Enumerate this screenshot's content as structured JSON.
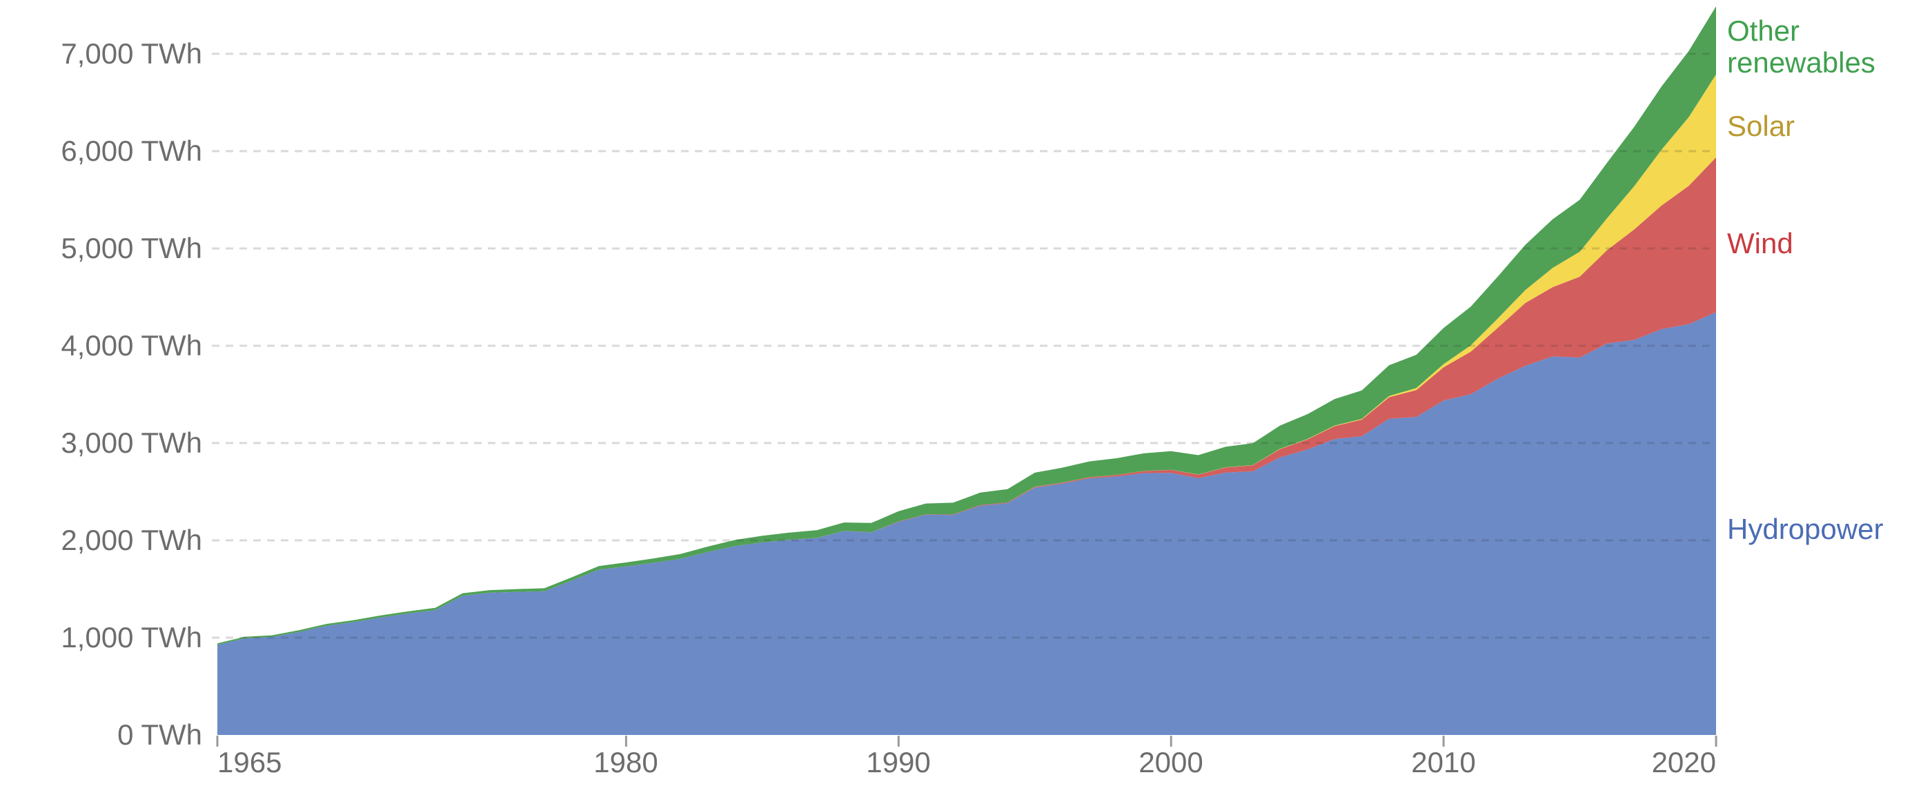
{
  "chart_data": {
    "type": "area",
    "stacked": true,
    "title": "",
    "unit": "TWh",
    "xlim": [
      1965,
      2020
    ],
    "ylim": [
      0,
      7000
    ],
    "grid": "dashed-horizontal",
    "legend_position": "right",
    "background_color": "#ffffff",
    "axis_text_color": "#6d6d6d",
    "gridline_color": "rgba(45,45,45,0.18)",
    "tick_mark_color": "#9a9a9a",
    "y_tick_labels": [
      "0 TWh",
      "1,000 TWh",
      "2,000 TWh",
      "3,000 TWh",
      "4,000 TWh",
      "5,000 TWh",
      "6,000 TWh",
      "7,000 TWh"
    ],
    "y_gridline_values": [
      1000,
      2000,
      3000,
      4000,
      5000,
      6000,
      7000
    ],
    "x_tick_labels": [
      "1965",
      "1980",
      "1990",
      "2000",
      "2010",
      "2020"
    ],
    "x_tick_years": [
      1965,
      1980,
      1990,
      2000,
      2010,
      2020
    ],
    "x": [
      1965,
      1966,
      1967,
      1968,
      1969,
      1970,
      1971,
      1972,
      1973,
      1974,
      1975,
      1976,
      1977,
      1978,
      1979,
      1980,
      1981,
      1982,
      1983,
      1984,
      1985,
      1986,
      1987,
      1988,
      1989,
      1990,
      1991,
      1992,
      1993,
      1994,
      1995,
      1996,
      1997,
      1998,
      1999,
      2000,
      2001,
      2002,
      2003,
      2004,
      2005,
      2006,
      2007,
      2008,
      2009,
      2010,
      2011,
      2012,
      2013,
      2014,
      2015,
      2016,
      2017,
      2018,
      2019,
      2020
    ],
    "series": [
      {
        "id": "hydropower",
        "name": "Hydropower",
        "color": "#6c8ac6",
        "label_color": "#4b6cb5",
        "values": [
          926,
          993,
          1008,
          1059,
          1123,
          1160,
          1208,
          1248,
          1283,
          1431,
          1462,
          1470,
          1477,
          1586,
          1699,
          1732,
          1769,
          1810,
          1880,
          1942,
          1979,
          2006,
          2025,
          2096,
          2082,
          2191,
          2263,
          2262,
          2357,
          2383,
          2542,
          2583,
          2636,
          2656,
          2691,
          2693,
          2638,
          2697,
          2709,
          2853,
          2933,
          3041,
          3070,
          3250,
          3269,
          3437,
          3503,
          3663,
          3794,
          3890,
          3879,
          4023,
          4060,
          4171,
          4222,
          4345
        ]
      },
      {
        "id": "wind",
        "name": "Wind",
        "color": "#d35e5e",
        "label_color": "#c93a3e",
        "values": [
          0,
          0,
          0,
          0,
          0,
          0,
          0,
          0,
          0,
          0,
          0,
          0,
          0,
          0,
          0,
          0,
          0,
          0,
          0,
          0,
          0,
          0.1,
          0.2,
          0.4,
          2,
          4,
          4,
          5,
          6,
          7,
          8,
          9,
          12,
          16,
          21,
          31,
          38,
          52,
          63,
          85,
          104,
          133,
          171,
          221,
          276,
          342,
          437,
          524,
          646,
          712,
          831,
          959,
          1136,
          1270,
          1421,
          1591
        ]
      },
      {
        "id": "solar",
        "name": "Solar",
        "color": "#f4d84f",
        "label_color": "#b9992f",
        "values": [
          0,
          0,
          0,
          0,
          0,
          0,
          0,
          0,
          0,
          0,
          0,
          0,
          0,
          0,
          0,
          0,
          0,
          0,
          0,
          0,
          0,
          0,
          0,
          0,
          0,
          0,
          0,
          0,
          0,
          0,
          1,
          1,
          1,
          1,
          1,
          1,
          1,
          2,
          2,
          3,
          4,
          5,
          7,
          12,
          20,
          32,
          64,
          97,
          132,
          198,
          256,
          328,
          445,
          574,
          707,
          853
        ]
      },
      {
        "id": "other-renewables",
        "name": "Other renewables",
        "color": "#50a156",
        "label_color": "#3fa04e",
        "values": [
          15,
          16,
          16,
          18,
          18,
          20,
          21,
          22,
          24,
          26,
          27,
          29,
          31,
          34,
          37,
          41,
          45,
          50,
          56,
          62,
          68,
          74,
          80,
          87,
          95,
          104,
          112,
          120,
          128,
          136,
          145,
          153,
          162,
          171,
          181,
          191,
          199,
          211,
          224,
          239,
          255,
          273,
          293,
          316,
          342,
          372,
          399,
          431,
          465,
          500,
          535,
          570,
          610,
          650,
          680,
          700
        ]
      }
    ]
  }
}
